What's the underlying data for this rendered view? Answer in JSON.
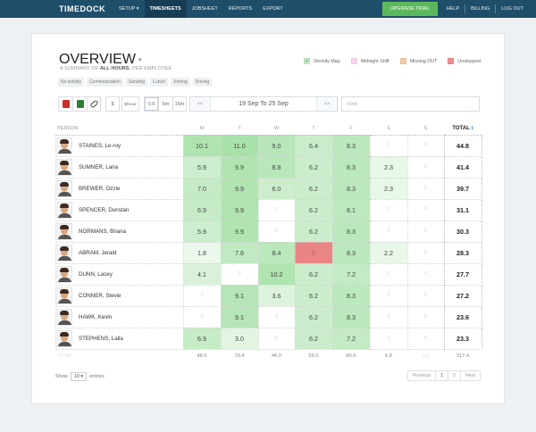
{
  "nav": {
    "brand": "TIMEDOCK",
    "items": [
      "SETUP ▾",
      "TIMESHEETS",
      "JOBSHEET",
      "REPORTS",
      "EXPORT"
    ],
    "upgrade": "UPGRADE TRIAL",
    "right": [
      "HELP",
      "BILLING",
      "LOG OUT"
    ]
  },
  "overview": {
    "title": "OVERVIEW",
    "caret": "▾",
    "subtitle_pre": "A SUMMARY OF ",
    "subtitle_bold": "ALL HOURS",
    "subtitle_post": ", PER EMPLOYEE"
  },
  "legend": [
    {
      "label": "Density Map",
      "color": "#c9ebc9",
      "check": "✓"
    },
    {
      "label": "Midnight Shift",
      "color": "#f8d6ef"
    },
    {
      "label": "Missing OUT",
      "color": "#f5c9a3"
    },
    {
      "label": "Unstopped",
      "color": "#ec8f8f"
    }
  ],
  "tags": [
    "No activity",
    "Communication",
    "Sanding",
    "Lunch",
    "Joining",
    "Driving"
  ],
  "toolbar": {
    "dollar": "$",
    "per_hour": "$/Hour",
    "fmt1": "0.0",
    "fmt2": "5m",
    "fmt3": "15m",
    "prev": "<<",
    "next": ">>",
    "range": "19 Sep To 25 Sep",
    "find_placeholder": "Find"
  },
  "table": {
    "person_header": "PERSON",
    "days": [
      "M",
      "T",
      "W",
      "T",
      "F",
      "S",
      "S"
    ],
    "total_header": "TOTAL",
    "info": "ℹ",
    "rows": [
      {
        "name": "STAINES, Le-roy",
        "hours": [
          "10.1",
          "11.0",
          "9.0",
          "6.4",
          "8.3",
          "0",
          "0"
        ],
        "total": "44.8"
      },
      {
        "name": "SUMNER, Lana",
        "hours": [
          "5.9",
          "9.9",
          "8.8",
          "6.2",
          "8.3",
          "2.3",
          "0"
        ],
        "total": "41.4"
      },
      {
        "name": "BREWER, Ozzie",
        "hours": [
          "7.0",
          "9.9",
          "6.0",
          "6.2",
          "8.3",
          "2.3",
          "0"
        ],
        "total": "39.7"
      },
      {
        "name": "SPENCER, Dunstan",
        "hours": [
          "6.9",
          "9.9",
          "0",
          "6.2",
          "8.1",
          "0",
          "0"
        ],
        "total": "31.1"
      },
      {
        "name": "NORMANS, Briana",
        "hours": [
          "5.9",
          "9.9",
          "0",
          "6.2",
          "8.3",
          "0",
          "0"
        ],
        "total": "30.3"
      },
      {
        "name": "ABRAM, Jerald",
        "hours": [
          "1.8",
          "7.6",
          "8.4",
          "0",
          "8.3",
          "2.2",
          "0"
        ],
        "total": "28.3"
      },
      {
        "name": "DUNN, Lacey",
        "hours": [
          "4.1",
          "0",
          "10.2",
          "6.2",
          "7.2",
          "0",
          "0"
        ],
        "total": "27.7"
      },
      {
        "name": "CONNER, Stevie",
        "hours": [
          "0",
          "9.1",
          "3.6",
          "6.2",
          "8.3",
          "0",
          "0"
        ],
        "total": "27.2"
      },
      {
        "name": "HAWK, Kevin",
        "hours": [
          "0",
          "9.1",
          "0",
          "6.2",
          "8.3",
          "0",
          "0"
        ],
        "total": "23.6"
      },
      {
        "name": "STEPHENS, Laila",
        "hours": [
          "6.9",
          "3.0",
          "0",
          "6.2",
          "7.2",
          "0",
          "0"
        ],
        "total": "23.3"
      }
    ],
    "totals_label": "TOTAL",
    "totals": [
      "48.6",
      "79.4",
      "46.0",
      "56.0",
      "80.6",
      "6.8",
      "0.0",
      "317.4"
    ]
  },
  "footer": {
    "show": "Show",
    "entries_value": "10 ▾",
    "entries": "entries",
    "prev": "Previous",
    "pages": [
      "1",
      "2"
    ],
    "next": "Next"
  }
}
